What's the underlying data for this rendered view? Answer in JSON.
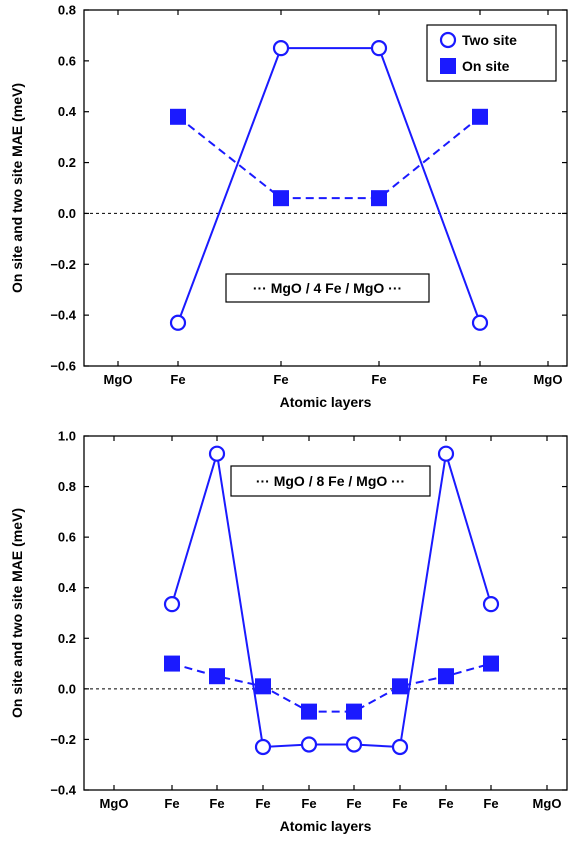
{
  "accent_color": "#1a1aff",
  "chart_data": [
    {
      "type": "line",
      "ylabel": "On site and two site MAE (meV)",
      "xlabel": "Atomic layers",
      "categories": [
        "MgO",
        "Fe",
        "Fe",
        "Fe",
        "Fe",
        "MgO"
      ],
      "x": [
        1,
        2,
        3,
        4
      ],
      "ylim": [
        -0.6,
        0.8
      ],
      "yticks": [
        -0.6,
        -0.4,
        -0.2,
        0.0,
        0.2,
        0.4,
        0.6,
        0.8
      ],
      "ytick_labels": [
        "−0.6",
        "−0.4",
        "−0.2",
        "0.0",
        "0.2",
        "0.4",
        "0.6",
        "0.8"
      ],
      "zero_line": true,
      "grid": false,
      "annotation": "··· MgO / 4 Fe / MgO ···",
      "legend": {
        "placement": "top-right",
        "entries": [
          "Two site",
          "On site"
        ]
      },
      "series": [
        {
          "name": "Two site",
          "marker": "open-circle",
          "line": "solid",
          "values": [
            -0.43,
            0.65,
            0.65,
            -0.43
          ]
        },
        {
          "name": "On site",
          "marker": "filled-square",
          "line": "dashed",
          "values": [
            0.38,
            0.06,
            0.06,
            0.38
          ]
        }
      ]
    },
    {
      "type": "line",
      "ylabel": "On site and two site MAE (meV)",
      "xlabel": "Atomic layers",
      "categories": [
        "MgO",
        "Fe",
        "Fe",
        "Fe",
        "Fe",
        "Fe",
        "Fe",
        "Fe",
        "Fe",
        "MgO"
      ],
      "x": [
        1,
        2,
        3,
        4,
        5,
        6,
        7,
        8
      ],
      "ylim": [
        -0.4,
        1.0
      ],
      "yticks": [
        -0.4,
        -0.2,
        0.0,
        0.2,
        0.4,
        0.6,
        0.8,
        1.0
      ],
      "ytick_labels": [
        "−0.4",
        "−0.2",
        "0.0",
        "0.2",
        "0.4",
        "0.6",
        "0.8",
        "1.0"
      ],
      "zero_line": true,
      "grid": false,
      "annotation": "··· MgO / 8 Fe / MgO ···",
      "series": [
        {
          "marker": "open-circle",
          "line": "solid",
          "values": [
            0.335,
            0.93,
            -0.23,
            -0.22,
            -0.22,
            -0.23,
            0.93,
            0.335
          ]
        },
        {
          "marker": "filled-square",
          "line": "dashed",
          "values": [
            0.1,
            0.05,
            0.01,
            -0.09,
            -0.09,
            0.01,
            0.05,
            0.1
          ]
        }
      ]
    }
  ]
}
